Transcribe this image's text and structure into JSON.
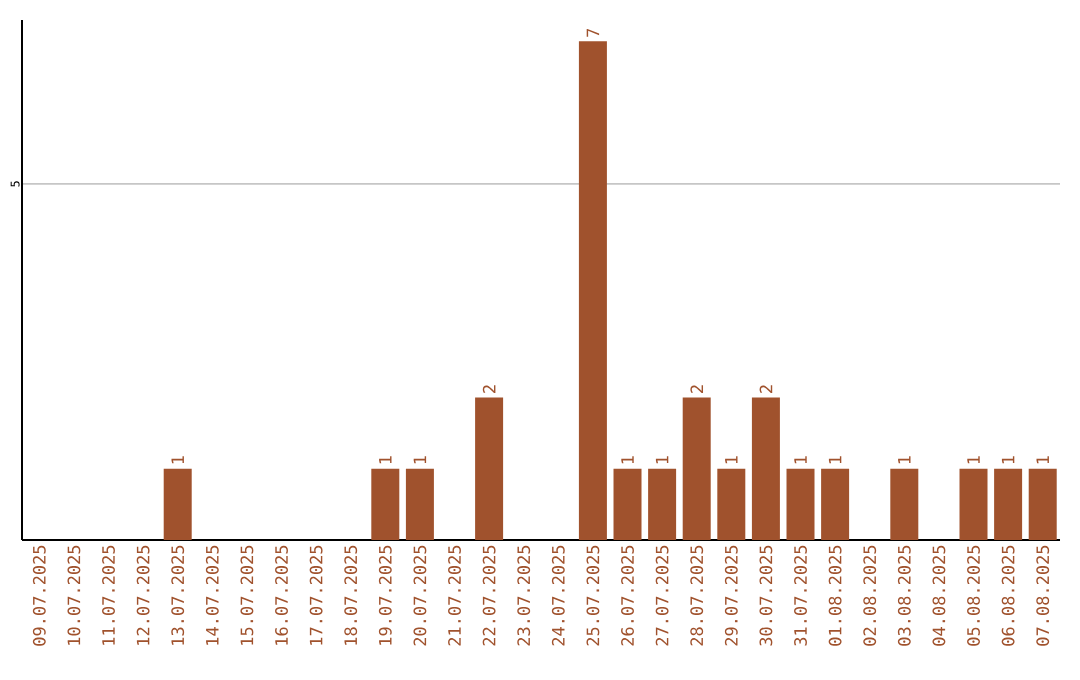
{
  "chart_data": {
    "type": "bar",
    "categories": [
      "09.07.2025",
      "10.07.2025",
      "11.07.2025",
      "12.07.2025",
      "13.07.2025",
      "14.07.2025",
      "15.07.2025",
      "16.07.2025",
      "17.07.2025",
      "18.07.2025",
      "19.07.2025",
      "20.07.2025",
      "21.07.2025",
      "22.07.2025",
      "23.07.2025",
      "24.07.2025",
      "25.07.2025",
      "26.07.2025",
      "27.07.2025",
      "28.07.2025",
      "29.07.2025",
      "30.07.2025",
      "31.07.2025",
      "01.08.2025",
      "02.08.2025",
      "03.08.2025",
      "04.08.2025",
      "05.08.2025",
      "06.08.2025",
      "07.08.2025"
    ],
    "values": [
      0,
      0,
      0,
      0,
      1,
      0,
      0,
      0,
      0,
      0,
      1,
      1,
      0,
      2,
      0,
      0,
      7,
      1,
      1,
      2,
      1,
      2,
      1,
      1,
      0,
      1,
      0,
      1,
      1,
      1
    ],
    "value_labels": [
      null,
      null,
      null,
      null,
      "1",
      null,
      null,
      null,
      null,
      null,
      "1",
      "1",
      null,
      "2",
      null,
      null,
      "7",
      "1",
      "1",
      "2",
      "1",
      "2",
      "1",
      "1",
      null,
      "1",
      null,
      "1",
      "1",
      "1"
    ],
    "color": "#a0522d",
    "ylim": [
      0,
      7.3
    ],
    "yticks": [
      5
    ],
    "grid": "y"
  }
}
